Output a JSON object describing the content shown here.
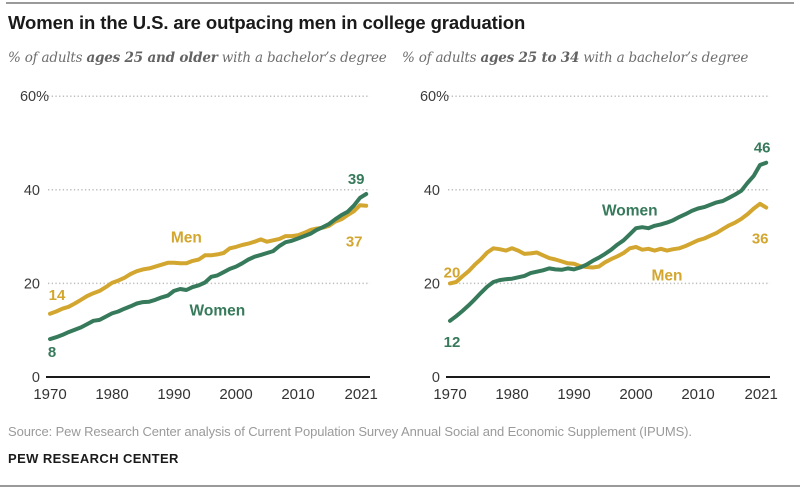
{
  "header": {
    "title": "Women in the U.S. are outpacing men in college graduation"
  },
  "charts": [
    {
      "subtitle": {
        "prefix": "% of adults ",
        "bold": "ages 25 and older",
        "suffix": " with a bachelor’s degree"
      }
    },
    {
      "subtitle": {
        "prefix": "% of adults ",
        "bold": "ages 25 to 34",
        "suffix": " with a bachelor’s degree"
      }
    }
  ],
  "chart_data": [
    {
      "type": "line",
      "subtitle": "% of adults ages 25 and older with a bachelor's degree",
      "x_start": 1970,
      "x_end": 2021,
      "x_step": 1,
      "xticks": [
        1970,
        1980,
        1990,
        2000,
        2010,
        2021
      ],
      "ylim": [
        0,
        60
      ],
      "yticks": [
        60,
        40,
        20,
        0
      ],
      "percent_tick": 60,
      "grid": "dotted-horizontal",
      "legend": "inline-labels",
      "series": [
        {
          "name": "Men",
          "color": "#d2a62f",
          "values": [
            13.5,
            14.0,
            14.6,
            15.0,
            15.7,
            16.5,
            17.3,
            17.9,
            18.4,
            19.2,
            20.1,
            20.6,
            21.2,
            22.0,
            22.6,
            23.0,
            23.2,
            23.6,
            24.0,
            24.4,
            24.4,
            24.3,
            24.3,
            24.8,
            25.1,
            26.0,
            26.0,
            26.2,
            26.5,
            27.5,
            27.8,
            28.2,
            28.5,
            28.9,
            29.4,
            28.9,
            29.2,
            29.5,
            30.1,
            30.1,
            30.3,
            30.8,
            31.4,
            31.7,
            31.9,
            32.3,
            33.2,
            33.7,
            34.6,
            35.4,
            36.7,
            36.6
          ],
          "start_label": {
            "text": "14",
            "dx": 7,
            "dy": -14
          },
          "end_label": {
            "text": "37",
            "dx": -12,
            "dy": 41
          },
          "name_label_pos": {
            "year": 1992,
            "value": 28.7
          }
        },
        {
          "name": "Women",
          "color": "#377a5b",
          "values": [
            8.1,
            8.5,
            9.0,
            9.6,
            10.1,
            10.6,
            11.3,
            12.0,
            12.2,
            12.9,
            13.6,
            14.0,
            14.6,
            15.1,
            15.7,
            16.0,
            16.1,
            16.5,
            17.0,
            17.4,
            18.4,
            18.8,
            18.6,
            19.2,
            19.6,
            20.2,
            21.4,
            21.7,
            22.4,
            23.1,
            23.6,
            24.3,
            25.1,
            25.7,
            26.1,
            26.5,
            26.9,
            28.0,
            28.8,
            29.1,
            29.6,
            30.1,
            30.6,
            31.4,
            32.0,
            32.7,
            33.7,
            34.6,
            35.3,
            36.6,
            38.3,
            39.1
          ],
          "start_label": {
            "text": "8",
            "dx": 2,
            "dy": 18
          },
          "end_label": {
            "text": "39",
            "dx": -10,
            "dy": -10
          },
          "name_label_pos": {
            "year": 1997,
            "value": 13.1
          }
        }
      ]
    },
    {
      "type": "line",
      "subtitle": "% of adults ages 25 to 34 with a bachelor's degree",
      "x_start": 1970,
      "x_end": 2021,
      "x_step": 1,
      "xticks": [
        1970,
        1980,
        1990,
        2000,
        2010,
        2021
      ],
      "ylim": [
        0,
        60
      ],
      "yticks": [
        60,
        40,
        20,
        0
      ],
      "percent_tick": 60,
      "grid": "dotted-horizontal",
      "legend": "inline-labels",
      "series": [
        {
          "name": "Men",
          "color": "#d2a62f",
          "values": [
            20.0,
            20.3,
            21.5,
            22.6,
            24.0,
            25.2,
            26.6,
            27.5,
            27.3,
            27.0,
            27.5,
            27.0,
            26.3,
            26.4,
            26.6,
            26.0,
            25.4,
            25.1,
            24.7,
            24.3,
            24.2,
            23.7,
            23.5,
            23.4,
            23.6,
            24.5,
            25.2,
            25.8,
            26.5,
            27.5,
            27.8,
            27.2,
            27.4,
            27.0,
            27.4,
            27.0,
            27.3,
            27.5,
            28.0,
            28.6,
            29.2,
            29.6,
            30.2,
            30.8,
            31.6,
            32.4,
            33.0,
            33.8,
            34.8,
            36.0,
            37.0,
            36.2
          ],
          "start_label": {
            "text": "20",
            "dx": 2,
            "dy": -6
          },
          "end_label": {
            "text": "36",
            "dx": -6,
            "dy": 36
          },
          "name_label_pos": {
            "year": 2005,
            "value": 20.6
          }
        },
        {
          "name": "Women",
          "color": "#377a5b",
          "values": [
            12.0,
            13.0,
            14.1,
            15.3,
            16.6,
            18.0,
            19.3,
            20.3,
            20.7,
            20.9,
            21.0,
            21.3,
            21.6,
            22.2,
            22.5,
            22.8,
            23.2,
            23.0,
            22.9,
            23.2,
            23.0,
            23.4,
            24.0,
            24.8,
            25.5,
            26.3,
            27.2,
            28.3,
            29.2,
            30.5,
            31.8,
            32.0,
            31.8,
            32.3,
            32.6,
            33.0,
            33.5,
            34.2,
            34.8,
            35.5,
            36.0,
            36.3,
            36.8,
            37.3,
            37.6,
            38.3,
            39.0,
            39.8,
            41.5,
            43.0,
            45.3,
            45.8
          ],
          "start_label": {
            "text": "12",
            "dx": 2,
            "dy": 26
          },
          "end_label": {
            "text": "46",
            "dx": -4,
            "dy": -10
          },
          "name_label_pos": {
            "year": 1999,
            "value": 34.5
          }
        }
      ]
    }
  ],
  "footer": {
    "source": "Source: Pew Research Center analysis of Current Population Survey Annual Social and Economic Supplement (IPUMS).",
    "brand": "PEW RESEARCH CENTER"
  },
  "style": {
    "accent_gold": "#d2a62f",
    "accent_green": "#377a5b",
    "grid_color": "#bdbdbd",
    "axis_color": "#1a1a1a",
    "tick_label_color": "#3a3a3a"
  }
}
